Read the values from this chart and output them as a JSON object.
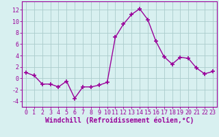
{
  "x": [
    0,
    1,
    2,
    3,
    4,
    5,
    6,
    7,
    8,
    9,
    10,
    11,
    12,
    13,
    14,
    15,
    16,
    17,
    18,
    19,
    20,
    21,
    22,
    23
  ],
  "y": [
    1,
    0.5,
    -1,
    -1,
    -1.5,
    -0.5,
    -3.5,
    -1.5,
    -1.5,
    -1.2,
    -0.7,
    7.2,
    9.5,
    11.2,
    12.2,
    10.3,
    6.5,
    3.8,
    2.5,
    3.7,
    3.5,
    1.8,
    0.8,
    1.2
  ],
  "line_color": "#990099",
  "marker": "+",
  "marker_size": 4,
  "marker_lw": 1.2,
  "bg_color": "#d8f0f0",
  "grid_color": "#aacccc",
  "xlabel": "Windchill (Refroidissement éolien,°C)",
  "xlabel_fontsize": 7,
  "xlabel_color": "#990099",
  "ylabel_ticks": [
    -4,
    -2,
    0,
    2,
    4,
    6,
    8,
    10,
    12
  ],
  "xlim": [
    -0.5,
    23.5
  ],
  "ylim": [
    -5,
    13.5
  ],
  "xtick_labels": [
    "0",
    "1",
    "2",
    "3",
    "4",
    "5",
    "6",
    "7",
    "8",
    "9",
    "10",
    "11",
    "12",
    "13",
    "14",
    "15",
    "16",
    "17",
    "18",
    "19",
    "20",
    "21",
    "22",
    "23"
  ],
  "tick_color": "#990099",
  "tick_fontsize": 6,
  "axis_color": "#990099",
  "line_width": 1.0
}
